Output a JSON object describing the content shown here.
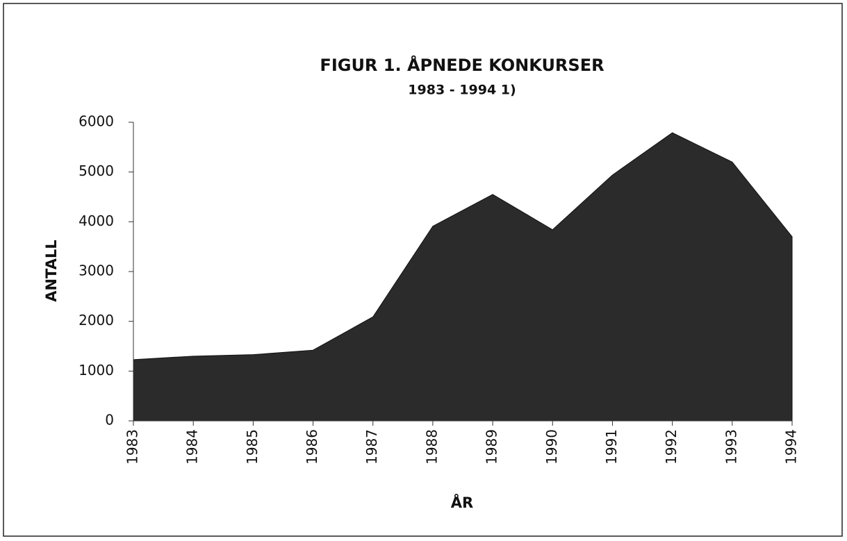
{
  "chart_data": {
    "type": "area",
    "title": "FIGUR 1. ÅPNEDE KONKURSER",
    "subtitle": "1983 - 1994 1)",
    "x_label": "ÅR",
    "y_label": "ANTALL",
    "categories": [
      "1983",
      "1984",
      "1985",
      "1986",
      "1987",
      "1988",
      "1989",
      "1990",
      "1991",
      "1992",
      "1993",
      "1994"
    ],
    "values": [
      1230,
      1300,
      1330,
      1420,
      2090,
      3910,
      4550,
      3840,
      4940,
      5790,
      5200,
      3700
    ],
    "color": "#2b2b2b",
    "ylim": [
      0,
      6000
    ],
    "yticks": [
      0,
      1000,
      2000,
      3000,
      4000,
      5000,
      6000
    ]
  }
}
